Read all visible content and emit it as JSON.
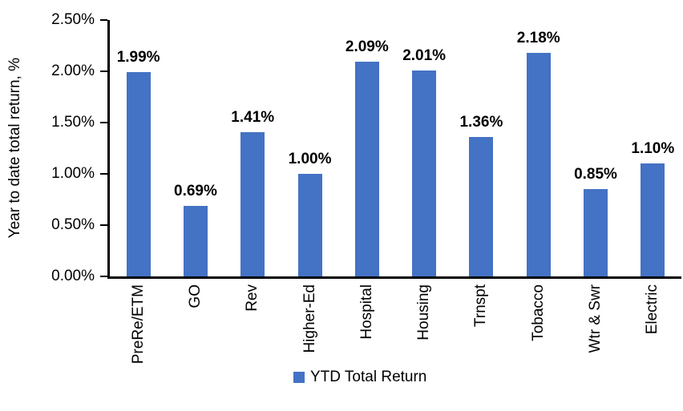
{
  "chart_data": {
    "type": "bar",
    "title": "",
    "categories": [
      "PreRe/ETM",
      "GO",
      "Rev",
      "Higher-Ed",
      "Hospital",
      "Housing",
      "Trnspt",
      "Tobacco",
      "Wtr & Swr",
      "Electric"
    ],
    "values": [
      1.99,
      0.69,
      1.41,
      1.0,
      2.09,
      2.01,
      1.36,
      2.18,
      0.85,
      1.1
    ],
    "value_labels": [
      "1.99%",
      "0.69%",
      "1.41%",
      "1.00%",
      "2.09%",
      "2.01%",
      "1.36%",
      "2.18%",
      "0.85%",
      "1.10%"
    ],
    "xlabel": "",
    "ylabel": "Year to date total return, %",
    "ylim": [
      0,
      2.5
    ],
    "ytick_labels_top_to_bottom": [
      "2.50%",
      "2.00%",
      "1.50%",
      "1.00%",
      "0.50%",
      "0.00%"
    ],
    "grid": false,
    "legend_position": "bottom",
    "series": [
      {
        "name": "YTD Total Return",
        "color": "#4472C4"
      }
    ]
  },
  "legend": {
    "label": "YTD Total Return",
    "swatch_color": "#4472C4"
  },
  "axes": {
    "y_title": "Year to date total return, %"
  },
  "colors": {
    "bar": "#4472C4",
    "axis": "#000000",
    "text": "#000000",
    "background": "#FFFFFF"
  }
}
